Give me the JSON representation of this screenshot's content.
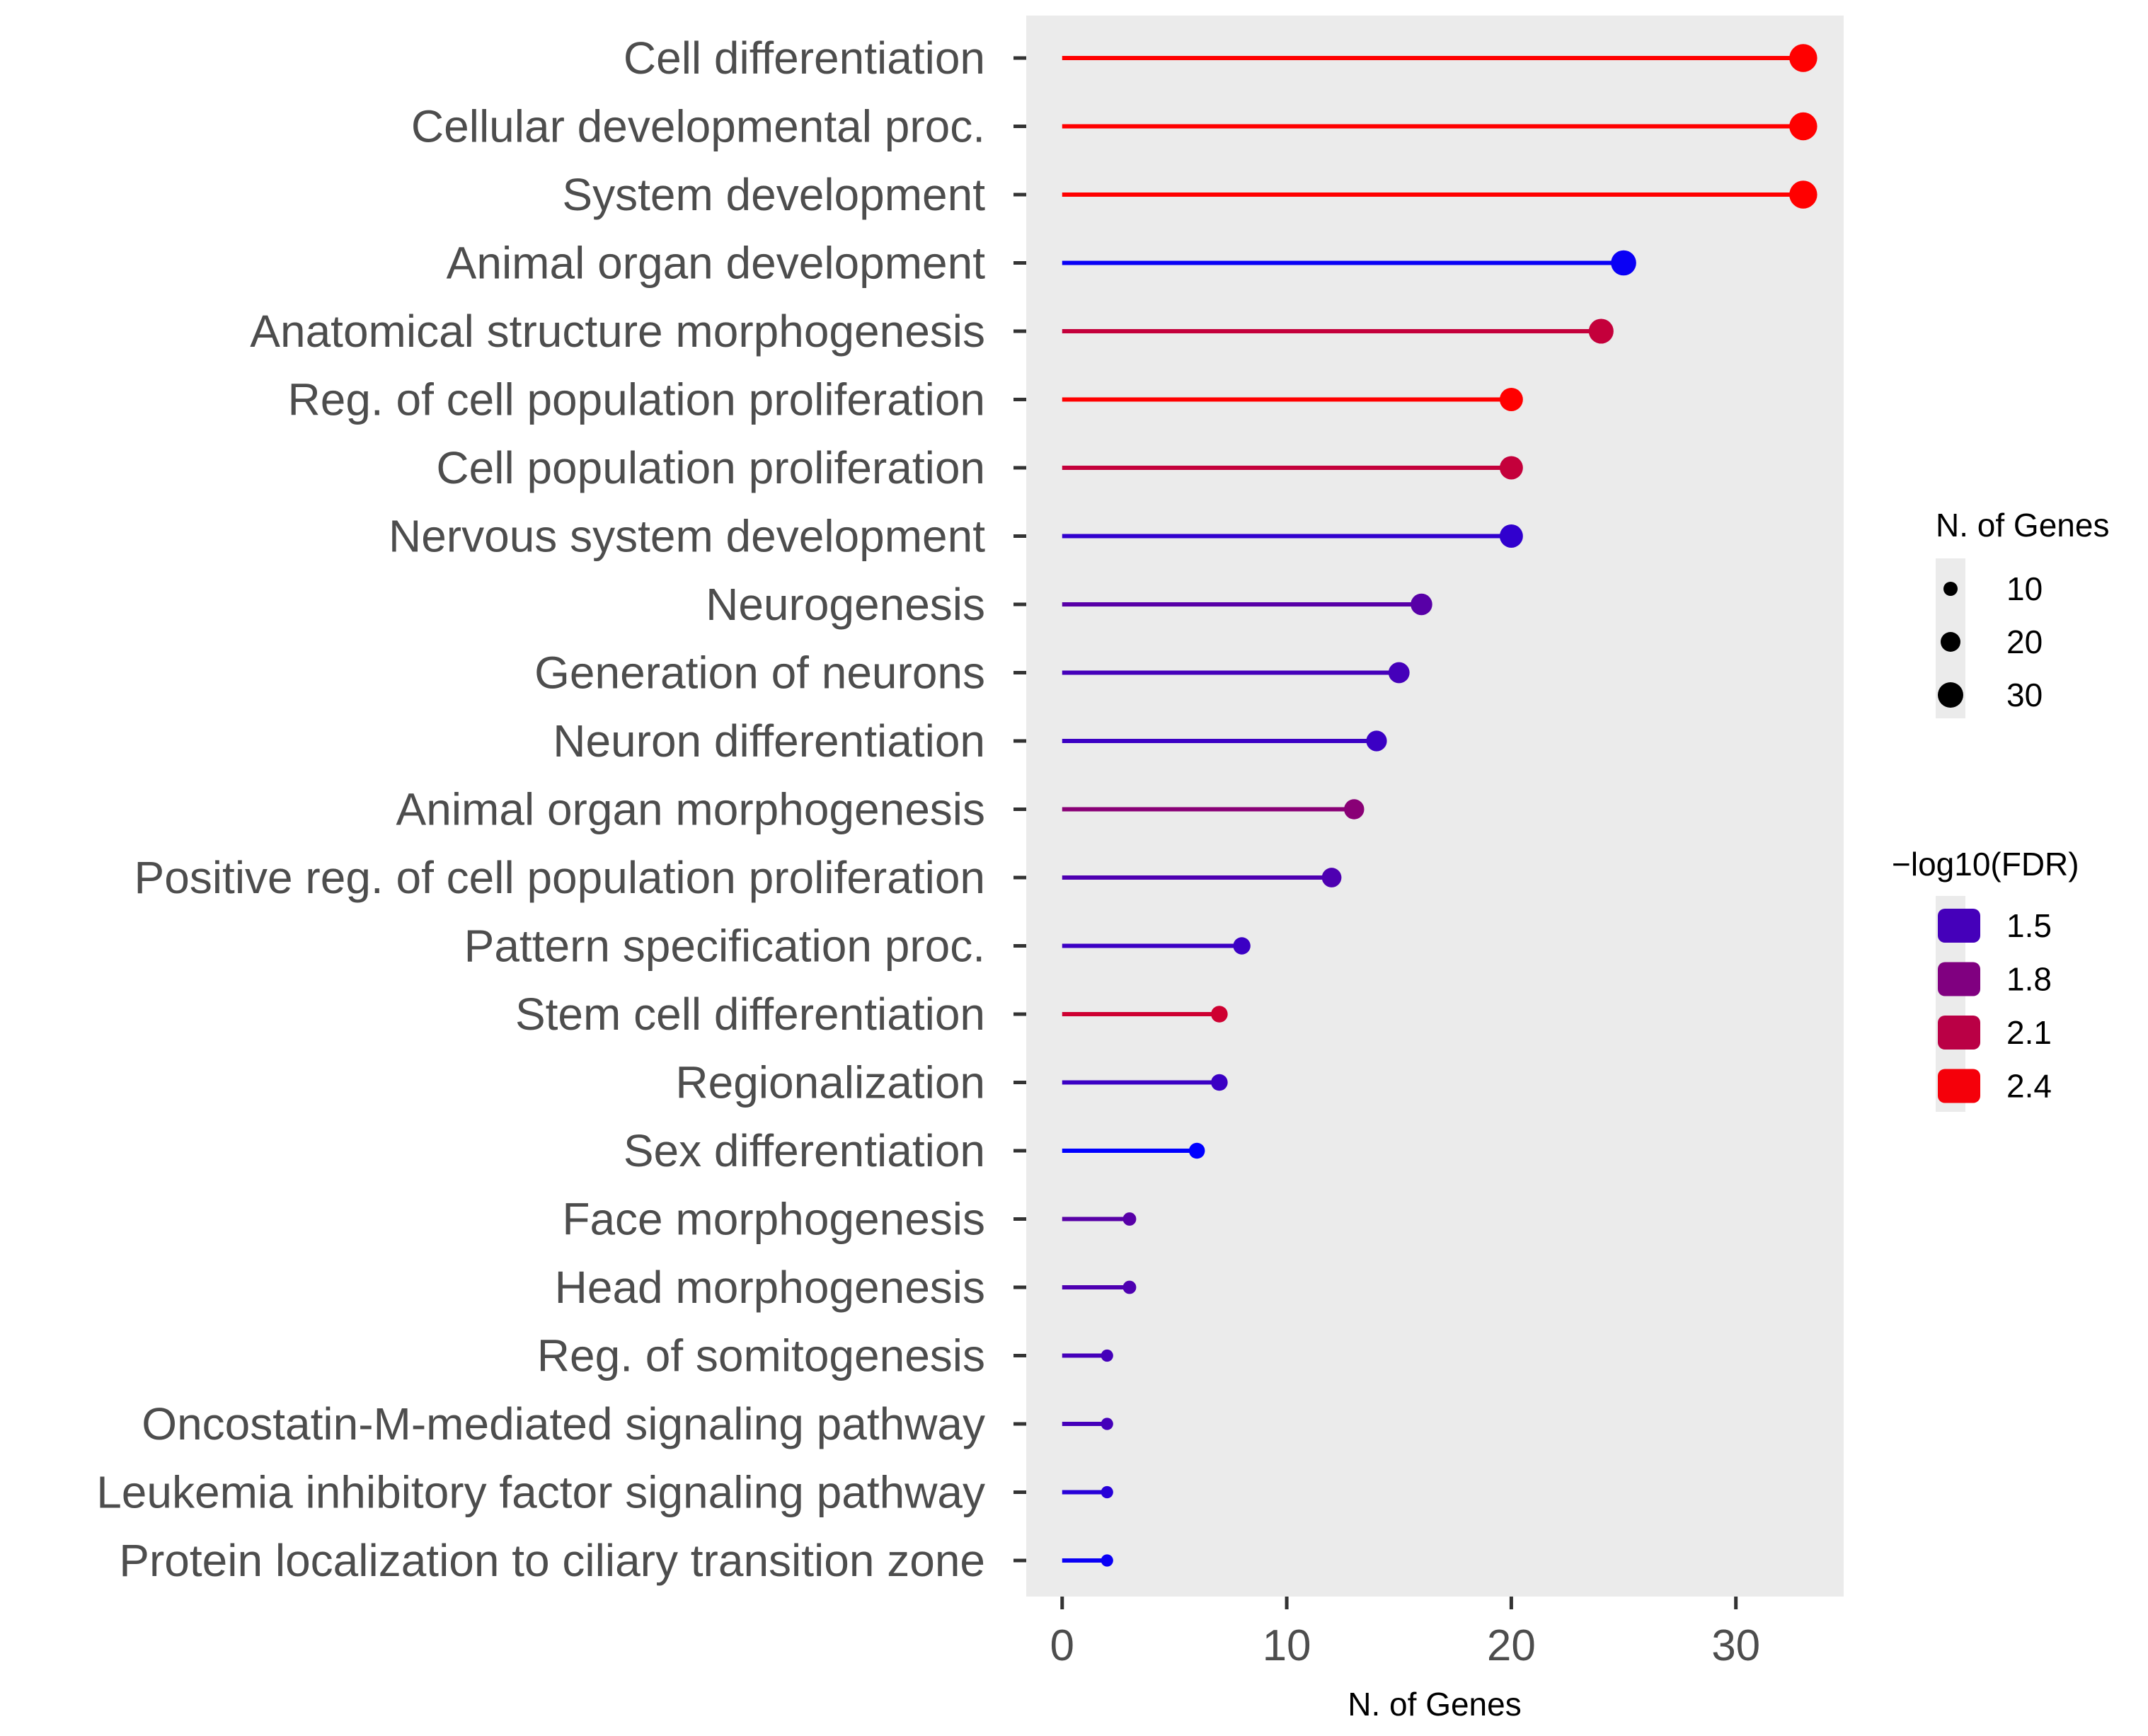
{
  "chart_data": {
    "type": "lollipop",
    "xlabel": "N. of Genes",
    "ylabel": "",
    "xlim": [
      -1.6,
      34.8
    ],
    "xticks": [
      0,
      10,
      20,
      30
    ],
    "xtick_labels": [
      "0",
      "10",
      "20",
      "30"
    ],
    "grid": false,
    "panel_background": "#ebebeb",
    "categories": [
      "Cell differentiation",
      "Cellular developmental proc.",
      "System development",
      "Animal organ development",
      "Anatomical structure morphogenesis",
      "Reg. of cell population proliferation",
      "Cell population proliferation",
      "Nervous system development",
      "Neurogenesis",
      "Generation of neurons",
      "Neuron differentiation",
      "Animal organ morphogenesis",
      "Positive reg. of cell population proliferation",
      "Pattern specification proc.",
      "Stem cell differentiation",
      "Regionalization",
      "Sex differentiation",
      "Face morphogenesis",
      "Head morphogenesis",
      "Reg. of somitogenesis",
      "Oncostatin-M-mediated signaling pathway",
      "Leukemia inhibitory factor signaling pathway",
      "Protein localization to ciliary transition zone"
    ],
    "values": [
      33,
      33,
      33,
      25,
      24,
      20,
      20,
      20,
      16,
      15,
      14,
      13,
      12,
      8,
      7,
      7,
      6,
      3,
      3,
      2,
      2,
      2,
      2
    ],
    "neg_log10_fdr": [
      2.45,
      2.45,
      2.45,
      1.2,
      2.15,
      2.45,
      2.15,
      1.4,
      1.6,
      1.5,
      1.45,
      1.85,
      1.55,
      1.45,
      2.2,
      1.45,
      1.15,
      1.6,
      1.55,
      1.5,
      1.5,
      1.35,
      1.2
    ],
    "color_scale": {
      "low": "#0000ff",
      "high": "#ff0000",
      "domain": [
        1.15,
        2.45
      ]
    },
    "size_legend": {
      "title": "N. of Genes",
      "labels": [
        "10",
        "20",
        "30"
      ],
      "values": [
        10,
        20,
        30
      ]
    },
    "color_legend": {
      "title": "−log10(FDR)",
      "labels": [
        "1.5",
        "1.8",
        "2.1",
        "2.4"
      ],
      "values": [
        1.5,
        1.8,
        2.1,
        2.4
      ]
    }
  }
}
